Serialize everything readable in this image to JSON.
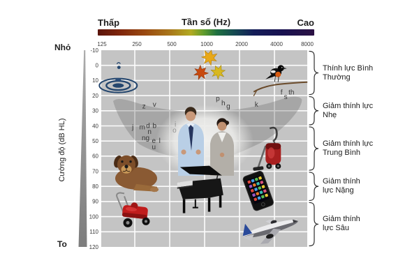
{
  "header": {
    "low_label": "Thấp",
    "axis_title": "Tần số (Hz)",
    "high_label": "Cao"
  },
  "left_axis": {
    "title": "Cường độ (dB HL)",
    "top_label": "Nhỏ",
    "bottom_label": "To"
  },
  "colors": {
    "plot_bg": "#c4c4c4",
    "grid": "#ffffff",
    "speech_banana": "rgba(105,105,105,0.33)",
    "gradient_stops": [
      "#5a140b 0%",
      "#7e250b 10%",
      "#9a4a10 22%",
      "#a8751a 33%",
      "#b2aa22 43%",
      "#5f9c2c 49%",
      "#1f7040 55%",
      "#154a52 63%",
      "#141d58 72%",
      "#181150 85%",
      "#2c1244 100%"
    ]
  },
  "chart_data": {
    "type": "scatter",
    "title": "Tần số (Hz)",
    "xlabel": "Tần số (Hz)",
    "ylabel": "Cường độ (dB HL)",
    "x_axis": {
      "scale": "log2",
      "ticks": [
        125,
        250,
        500,
        1000,
        2000,
        4000,
        8000
      ],
      "unit": "Hz"
    },
    "y_axis": {
      "ticks": [
        -10,
        0,
        10,
        20,
        30,
        40,
        50,
        60,
        70,
        80,
        90,
        100,
        110,
        120
      ],
      "unit": "dB HL",
      "range": [
        -10,
        120
      ],
      "inverted": true
    },
    "grid": true,
    "speech_banana_letters": [
      {
        "ch": "z",
        "f": 300,
        "db": 27
      },
      {
        "ch": "v",
        "f": 370,
        "db": 26
      },
      {
        "ch": "j",
        "f": 240,
        "db": 41
      },
      {
        "ch": "m",
        "f": 290,
        "db": 41
      },
      {
        "ch": "d",
        "f": 325,
        "db": 40
      },
      {
        "ch": "b",
        "f": 370,
        "db": 40
      },
      {
        "ch": "n",
        "f": 335,
        "db": 44
      },
      {
        "ch": "ng",
        "f": 310,
        "db": 48
      },
      {
        "ch": "e",
        "f": 365,
        "db": 50
      },
      {
        "ch": "l",
        "f": 410,
        "db": 50
      },
      {
        "ch": "u",
        "f": 365,
        "db": 54
      },
      {
        "ch": "i",
        "f": 560,
        "db": 39,
        "faint": true
      },
      {
        "ch": "o",
        "f": 550,
        "db": 43,
        "faint": true
      },
      {
        "ch": "p",
        "f": 1300,
        "db": 22
      },
      {
        "ch": "h",
        "f": 1450,
        "db": 25
      },
      {
        "ch": "g",
        "f": 1600,
        "db": 27
      },
      {
        "ch": "k",
        "f": 2800,
        "db": 26
      },
      {
        "ch": "f",
        "f": 4600,
        "db": 18
      },
      {
        "ch": "s",
        "f": 5000,
        "db": 21
      },
      {
        "ch": "th",
        "f": 5600,
        "db": 18
      }
    ],
    "sounds": [
      {
        "name": "water-drop",
        "f": 180,
        "db": 11
      },
      {
        "name": "falling-leaves",
        "f": 1150,
        "db": 0
      },
      {
        "name": "bird",
        "f": 4300,
        "db": 6
      },
      {
        "name": "conversation",
        "f": 1000,
        "db": 49
      },
      {
        "name": "dog",
        "f": 250,
        "db": 71
      },
      {
        "name": "vacuum-cleaner",
        "f": 3800,
        "db": 56
      },
      {
        "name": "piano",
        "f": 930,
        "db": 82
      },
      {
        "name": "smartphone",
        "f": 2900,
        "db": 83
      },
      {
        "name": "lawnmower",
        "f": 250,
        "db": 99
      },
      {
        "name": "airplane",
        "f": 3700,
        "db": 108
      }
    ],
    "hearing_levels": [
      {
        "lines": [
          "Thính lực Bình",
          "Thường"
        ],
        "db_min": -10,
        "db_max": 20
      },
      {
        "lines": [
          "Giảm thính lực",
          "Nhẹ"
        ],
        "db_min": 20,
        "db_max": 40
      },
      {
        "lines": [
          "Giảm thính lực",
          "Trung Bình"
        ],
        "db_min": 40,
        "db_max": 70
      },
      {
        "lines": [
          "Giảm thính",
          "lực Nặng"
        ],
        "db_min": 70,
        "db_max": 90
      },
      {
        "lines": [
          "Giảm thính",
          "lực Sâu"
        ],
        "db_min": 90,
        "db_max": 120
      }
    ]
  }
}
